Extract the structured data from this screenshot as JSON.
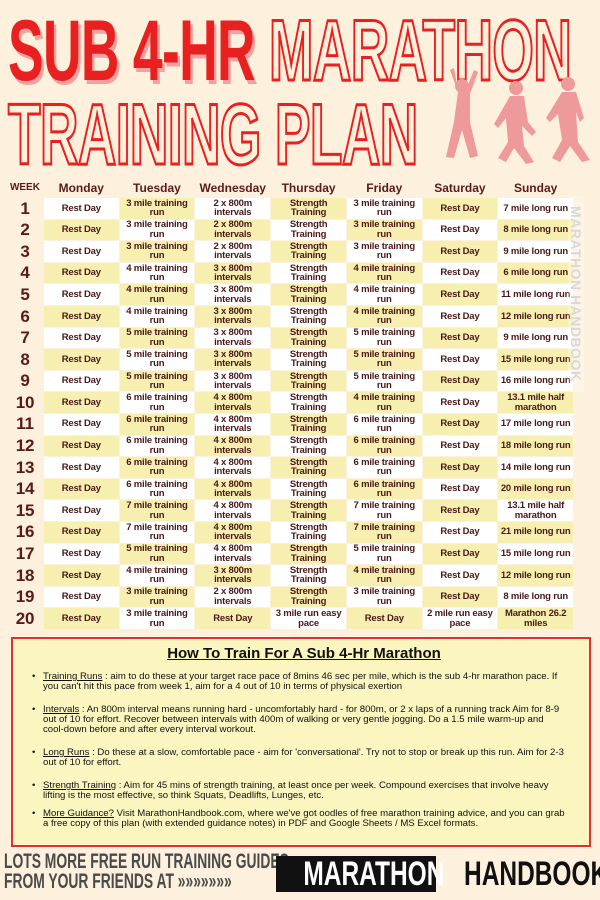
{
  "title": {
    "line1_solid": "SUB 4-HR",
    "line1_outline": "MARATHON",
    "line2": "TRAINING PLAN"
  },
  "colors": {
    "accent": "#e8201f",
    "cell_yellow": "#f7efb0",
    "cell_white": "#ffffff",
    "background": "#fdf0dc"
  },
  "table": {
    "week_label": "WEEK",
    "days": [
      "Monday",
      "Tuesday",
      "Wednesday",
      "Thursday",
      "Friday",
      "Saturday",
      "Sunday"
    ],
    "rows": [
      {
        "week": "1",
        "cells": [
          "Rest Day",
          "3 mile training run",
          "2 x 800m intervals",
          "Strength Training",
          "3 mile training run",
          "Rest Day",
          "7 mile long run"
        ]
      },
      {
        "week": "2",
        "cells": [
          "Rest Day",
          "3 mile training run",
          "2 x 800m intervals",
          "Strength Training",
          "3 mile training run",
          "Rest Day",
          "8 mile long run"
        ]
      },
      {
        "week": "3",
        "cells": [
          "Rest Day",
          "3 mile training run",
          "2 x 800m intervals",
          "Strength Training",
          "3 mile training run",
          "Rest Day",
          "9 mile long run"
        ]
      },
      {
        "week": "4",
        "cells": [
          "Rest Day",
          "4 mile training run",
          "3 x 800m intervals",
          "Strength Training",
          "4 mile training run",
          "Rest Day",
          "6 mile long run"
        ]
      },
      {
        "week": "5",
        "cells": [
          "Rest Day",
          "4 mile training run",
          "3 x 800m intervals",
          "Strength Training",
          "4 mile training run",
          "Rest Day",
          "11 mile long run"
        ]
      },
      {
        "week": "6",
        "cells": [
          "Rest Day",
          "4 mile training run",
          "3 x 800m intervals",
          "Strength Training",
          "4 mile training run",
          "Rest Day",
          "12 mile long run"
        ]
      },
      {
        "week": "7",
        "cells": [
          "Rest Day",
          "5 mile training run",
          "3 x 800m intervals",
          "Strength Training",
          "5 mile training run",
          "Rest Day",
          "9 mile long run"
        ]
      },
      {
        "week": "8",
        "cells": [
          "Rest Day",
          "5 mile training run",
          "3 x 800m intervals",
          "Strength Training",
          "5 mile training run",
          "Rest Day",
          "15 mile long run"
        ]
      },
      {
        "week": "9",
        "cells": [
          "Rest Day",
          "5 mile training run",
          "3 x 800m intervals",
          "Strength Training",
          "5 mile training run",
          "Rest Day",
          "16 mile long run"
        ]
      },
      {
        "week": "10",
        "cells": [
          "Rest Day",
          "6 mile training run",
          "4 x 800m intervals",
          "Strength Training",
          "4 mile training run",
          "Rest Day",
          "13.1 mile half marathon"
        ]
      },
      {
        "week": "11",
        "cells": [
          "Rest Day",
          "6 mile training run",
          "4 x 800m intervals",
          "Strength Training",
          "6 mile training run",
          "Rest Day",
          "17 mile long run"
        ]
      },
      {
        "week": "12",
        "cells": [
          "Rest Day",
          "6 mile training run",
          "4 x 800m intervals",
          "Strength Training",
          "6 mile training run",
          "Rest Day",
          "18 mile long run"
        ]
      },
      {
        "week": "13",
        "cells": [
          "Rest Day",
          "6 mile training run",
          "4 x 800m intervals",
          "Strength Training",
          "6 mile training run",
          "Rest Day",
          "14 mile long run"
        ]
      },
      {
        "week": "14",
        "cells": [
          "Rest Day",
          "6 mile training run",
          "4 x 800m intervals",
          "Strength Training",
          "6 mile training run",
          "Rest Day",
          "20 mile long run"
        ]
      },
      {
        "week": "15",
        "cells": [
          "Rest Day",
          "7 mile training run",
          "4 x 800m intervals",
          "Strength Training",
          "7 mile training run",
          "Rest Day",
          "13.1 mile half marathon"
        ]
      },
      {
        "week": "16",
        "cells": [
          "Rest Day",
          "7 mile training run",
          "4 x 800m intervals",
          "Strength Training",
          "7 mile training run",
          "Rest Day",
          "21 mile long run"
        ]
      },
      {
        "week": "17",
        "cells": [
          "Rest Day",
          "5 mile training run",
          "4 x 800m intervals",
          "Strength Training",
          "5 mile training run",
          "Rest Day",
          "15 mile long run"
        ]
      },
      {
        "week": "18",
        "cells": [
          "Rest Day",
          "4 mile training run",
          "3 x 800m intervals",
          "Strength Training",
          "4 mile training run",
          "Rest Day",
          "12 mile long run"
        ]
      },
      {
        "week": "19",
        "cells": [
          "Rest Day",
          "3 mile training run",
          "2 x 800m intervals",
          "Strength Training",
          "3 mile training run",
          "Rest Day",
          "8 mile long run"
        ]
      },
      {
        "week": "20",
        "cells": [
          "Rest Day",
          "3 mile training run",
          "Rest Day",
          "3 mile run easy pace",
          "Rest Day",
          "2 mile run easy pace",
          "Marathon 26.2 miles"
        ]
      }
    ]
  },
  "watermark": "MARATHON HANDBOOK",
  "guide": {
    "heading": "How To Train For A Sub 4-Hr Marathon",
    "items": [
      {
        "key": "Training Runs",
        "text": " : aim to do these at your target race pace of 8mins 46 sec per mile, which is the sub 4-hr marathon pace. If you can't hit this pace from week 1, aim for a 4 out of 10 in terms of physical exertion"
      },
      {
        "key": "Intervals",
        "text": " : An 800m interval means running hard - uncomfortably hard - for 800m, or 2 x laps of a running track Aim for 8-9 out of 10 for effort.  Recover between intervals with 400m of walking or very gentle jogging. Do a 1.5 mile warm-up and cool-down before and after every interval workout."
      },
      {
        "key": "Long Runs",
        "text": " : Do these at a slow, comfortable pace - aim for 'conversational'.   Try not to stop or break up this run.  Aim for 2-3 out of 10 for effort."
      },
      {
        "key": "Strength Training",
        "text": " : Aim for 45 mins of strength training, at least once per week. Compound exercises that involve heavy lifting is the most effective, so think Squats, Deadlifts, Lunges, etc."
      },
      {
        "key": "More Guidance?",
        "text": " Visit MarathonHandbook.com, where we've got oodles of free marathon training advice, and you can grab a free copy of this plan (with extended guidance notes) in PDF and Google Sheets / MS Excel formats."
      }
    ]
  },
  "footer": {
    "line1": "LOTS MORE FREE RUN TRAINING  GUIDES",
    "line2": "FROM YOUR FRIENDS AT",
    "arrows": "»»»»»»»",
    "logo_part1": "MARATHON",
    "logo_part2": "HANDBOOK"
  }
}
